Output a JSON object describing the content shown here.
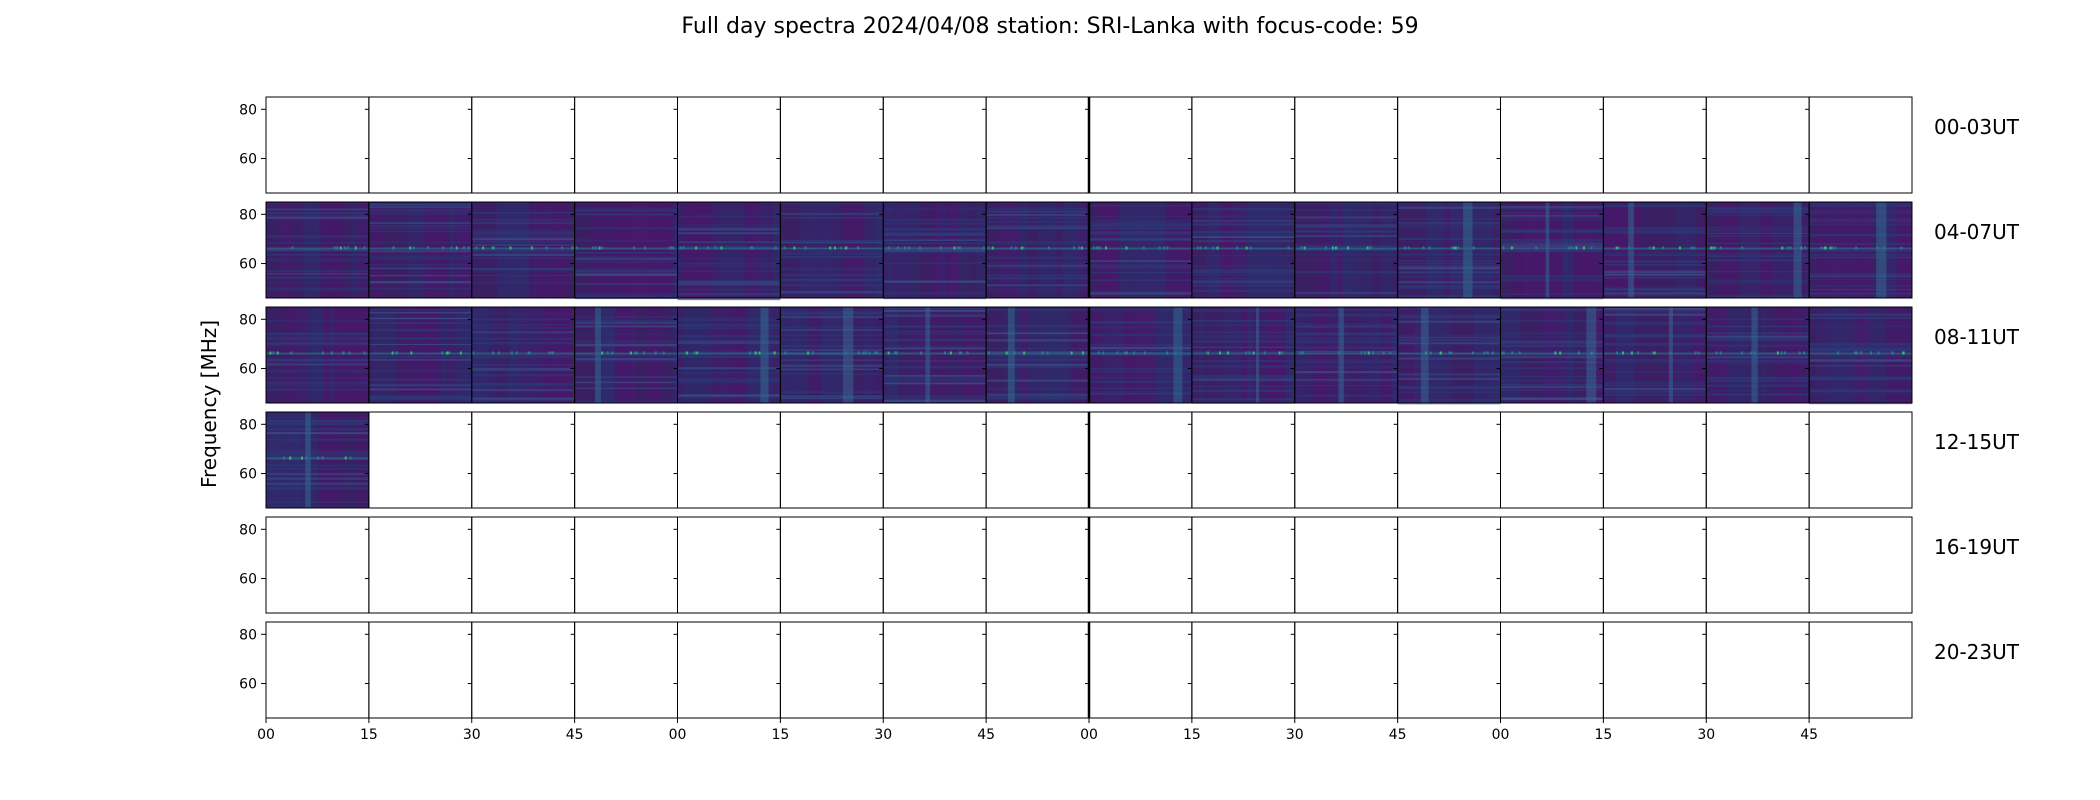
{
  "chart_data": {
    "type": "heatmap",
    "title": "Full day spectra 2024/04/08 station: SRI-Lanka with focus-code: 59",
    "ylabel": "Frequency [MHz]",
    "xlabel": "",
    "y_ticks": [
      "80",
      "60"
    ],
    "ylim": [
      46,
      85
    ],
    "x_ticks": [
      "00",
      "15",
      "30",
      "45",
      "00",
      "15",
      "30",
      "45",
      "00",
      "15",
      "30",
      "45",
      "00",
      "15",
      "30",
      "45"
    ],
    "columns_per_row": 16,
    "minutes_per_column": 15,
    "colormap": "viridis",
    "colors": {
      "background": "#3b1f63",
      "low": "#440154",
      "mid": "#31688e",
      "high": "#35b779",
      "peak": "#b5de2b"
    },
    "rows": [
      {
        "label": "00-03UT",
        "data_columns": []
      },
      {
        "label": "04-07UT",
        "data_columns": [
          0,
          1,
          2,
          3,
          4,
          5,
          6,
          7,
          8,
          9,
          10,
          11,
          12,
          13,
          14,
          15
        ]
      },
      {
        "label": "08-11UT",
        "data_columns": [
          0,
          1,
          2,
          3,
          4,
          5,
          6,
          7,
          8,
          9,
          10,
          11,
          12,
          13,
          14,
          15
        ]
      },
      {
        "label": "12-15UT",
        "data_columns": [
          0
        ]
      },
      {
        "label": "16-19UT",
        "data_columns": []
      },
      {
        "label": "20-23UT",
        "data_columns": []
      }
    ]
  }
}
